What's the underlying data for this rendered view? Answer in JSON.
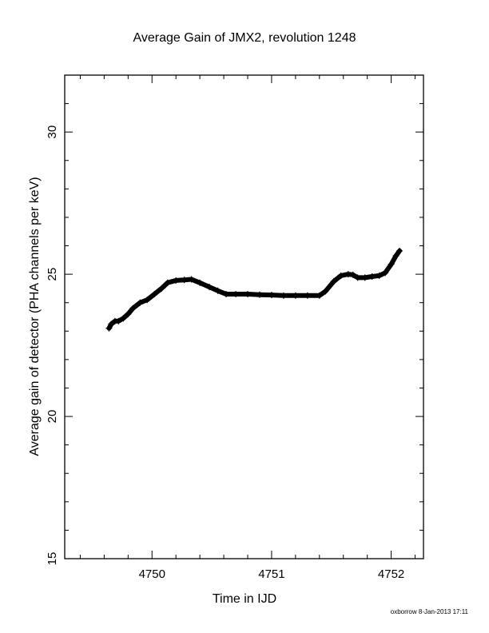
{
  "chart_data": {
    "type": "scatter",
    "title": "Average Gain of JMX2, revolution 1248",
    "xlabel": "Time in IJD",
    "ylabel": "Average gain of detector (PHA channels per keV)",
    "xlim": [
      4749.27,
      4752.27
    ],
    "ylim": [
      15,
      32
    ],
    "xticks": [
      4750,
      4751,
      4752
    ],
    "xtick_labels": [
      "4750",
      "4751",
      "4752"
    ],
    "yticks": [
      15,
      20,
      25,
      30
    ],
    "ytick_labels": [
      "15",
      "20",
      "25",
      "30"
    ],
    "x_minor_step": 0.2,
    "y_minor_step": 1,
    "grid": false,
    "marker": "plus",
    "series": [
      {
        "color": "#000000",
        "points": [
          [
            4749.64,
            23.1
          ],
          [
            4749.66,
            23.25
          ],
          [
            4749.69,
            23.35
          ],
          [
            4749.72,
            23.35
          ],
          [
            4749.76,
            23.45
          ],
          [
            4749.8,
            23.6
          ],
          [
            4749.84,
            23.8
          ],
          [
            4749.9,
            24.0
          ],
          [
            4749.96,
            24.1
          ],
          [
            4750.02,
            24.3
          ],
          [
            4750.08,
            24.5
          ],
          [
            4750.13,
            24.7
          ],
          [
            4750.2,
            24.78
          ],
          [
            4750.27,
            24.8
          ],
          [
            4750.33,
            24.82
          ],
          [
            4750.4,
            24.7
          ],
          [
            4750.48,
            24.55
          ],
          [
            4750.55,
            24.42
          ],
          [
            4750.62,
            24.3
          ],
          [
            4750.7,
            24.3
          ],
          [
            4750.8,
            24.3
          ],
          [
            4750.9,
            24.28
          ],
          [
            4751.0,
            24.27
          ],
          [
            4751.1,
            24.25
          ],
          [
            4751.2,
            24.25
          ],
          [
            4751.3,
            24.25
          ],
          [
            4751.4,
            24.25
          ],
          [
            4751.45,
            24.4
          ],
          [
            4751.52,
            24.75
          ],
          [
            4751.58,
            24.95
          ],
          [
            4751.64,
            25.0
          ],
          [
            4751.68,
            24.98
          ],
          [
            4751.72,
            24.88
          ],
          [
            4751.78,
            24.88
          ],
          [
            4751.84,
            24.92
          ],
          [
            4751.9,
            24.95
          ],
          [
            4751.95,
            25.05
          ],
          [
            4752.0,
            25.35
          ],
          [
            4752.04,
            25.65
          ],
          [
            4752.07,
            25.82
          ]
        ]
      }
    ]
  },
  "footer": {
    "stamp": "oxborrow  8-Jan-2013 17:11"
  }
}
